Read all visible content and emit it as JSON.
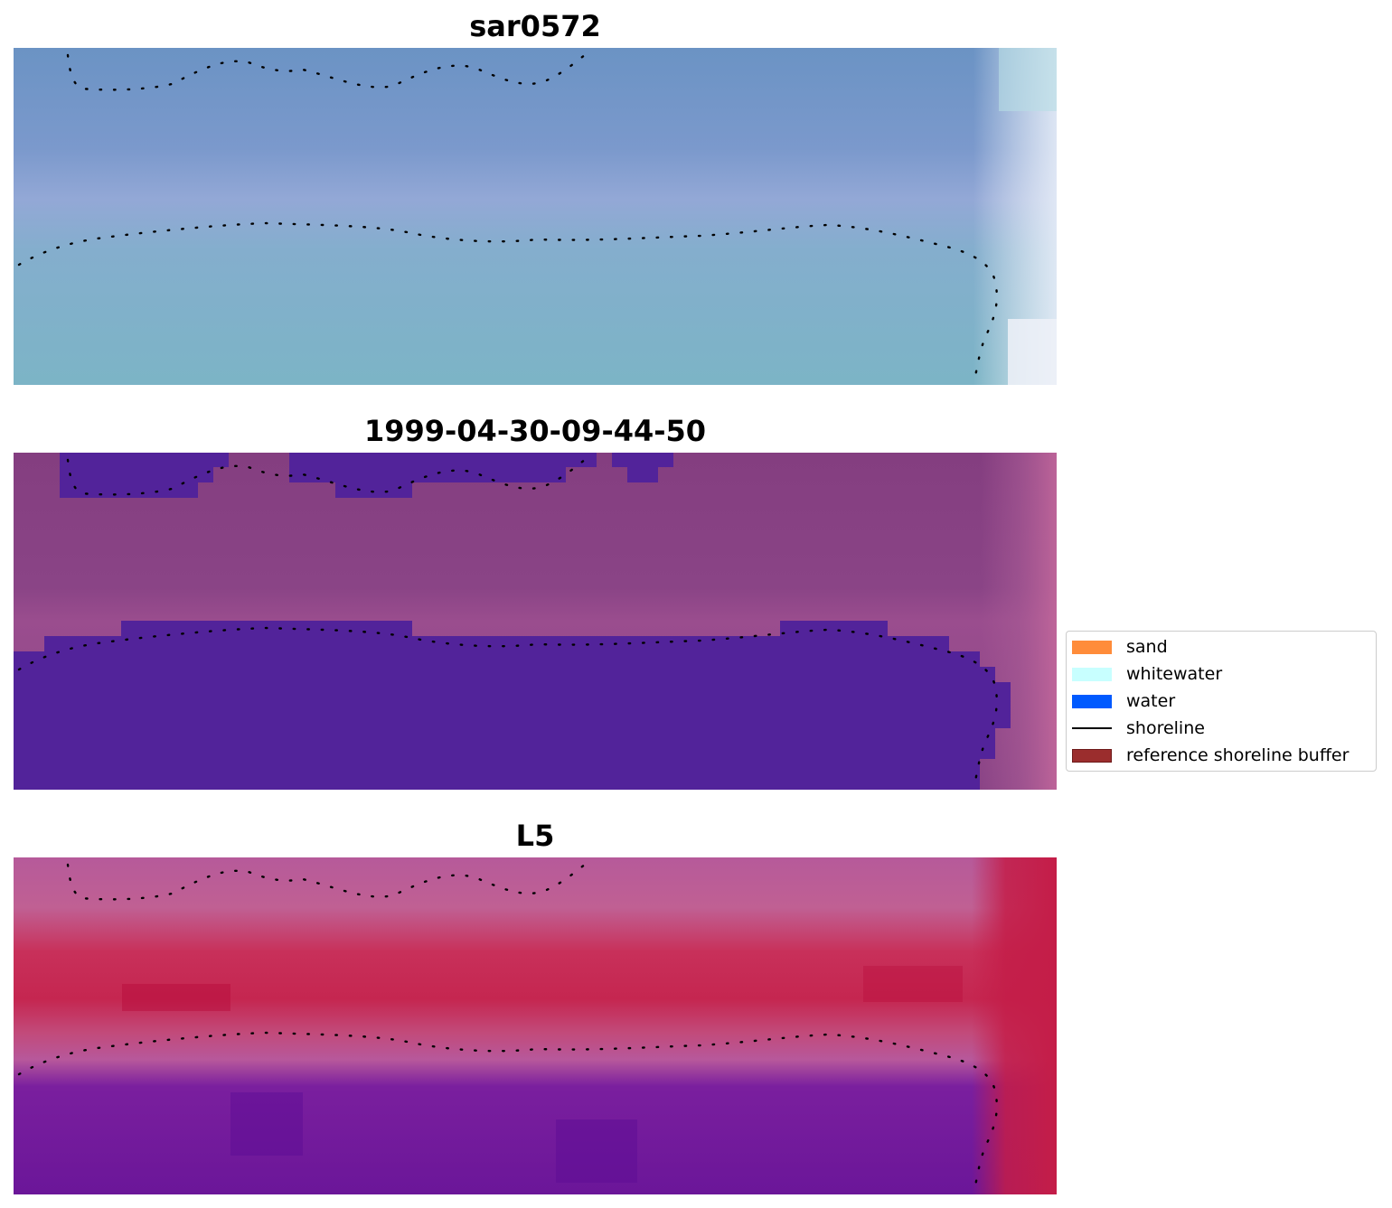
{
  "panels": [
    {
      "title": "sar0572",
      "style": "blue-composite"
    },
    {
      "title": "1999-04-30-09-44-50",
      "style": "classified"
    },
    {
      "title": "L5",
      "style": "red-composite"
    }
  ],
  "legend": {
    "items": [
      {
        "label": "sand",
        "color": "#ff8c3a",
        "kind": "patch"
      },
      {
        "label": "whitewater",
        "color": "#c8ffff",
        "kind": "patch"
      },
      {
        "label": "water",
        "color": "#005aff",
        "kind": "patch"
      },
      {
        "label": "shoreline",
        "color": "#000000",
        "kind": "line"
      },
      {
        "label": "reference shoreline buffer",
        "color": "#9b2d2d",
        "kind": "patch"
      }
    ]
  },
  "colors": {
    "classified_water": "#52239a",
    "classified_land": "#843f82",
    "blue_top": "#6a92c6",
    "blue_bottom": "#7db4c6",
    "red_band": "#c0194a",
    "red_water": "#6b1699",
    "shoreline_dots": "#000000"
  }
}
